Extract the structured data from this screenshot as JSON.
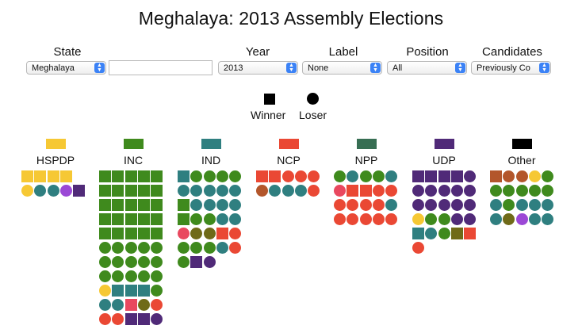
{
  "title": "Meghalaya: 2013 Assembly Elections",
  "controls": {
    "state": {
      "label": "State",
      "value": "Meghalaya"
    },
    "search": {
      "value": ""
    },
    "year": {
      "label": "Year",
      "value": "2013"
    },
    "labelsel": {
      "label": "Label",
      "value": "None"
    },
    "position": {
      "label": "Position",
      "value": "All"
    },
    "candidates": {
      "label": "Candidates",
      "value": "Previously Co"
    }
  },
  "legend": {
    "winner": "Winner",
    "loser": "Loser"
  },
  "colors": {
    "G": "#3f8a1d",
    "T": "#2f7f80",
    "Y": "#f6c834",
    "P": "#502a78",
    "R": "#ea4834",
    "B": "#b3562b",
    "O": "#6f6a18",
    "K": "#e9485f",
    "V": "#9b48d6",
    "D": "#376e53",
    "X": "#000000"
  },
  "parties": [
    {
      "name": "HSPDP",
      "color": "#f6c834",
      "rows": [
        "YwYwYwYw",
        "YlTlTlVlPw"
      ]
    },
    {
      "name": "INC",
      "color": "#3f8a1d",
      "rows": [
        "GwGwGwGwGw",
        "GwGwGwGwGw",
        "GwGwGwGwGw",
        "GwGwGwGwGw",
        "GwGwGwGwGw",
        "GlGlGlGlGl",
        "GlGlGlGlGl",
        "GlGlGlGlGl",
        "YlTwTwTwGl",
        "TlTlKwOlRl",
        "RlRlPwPwPl"
      ]
    },
    {
      "name": "IND",
      "color": "#2f7f80",
      "rows": [
        "TwGlGlGlGl",
        "TlTlTlTlTl",
        "GwTlTlTlTl",
        "GwGlGlTlTl",
        "KlOlOlRwRl",
        "GlGlGlTlRl",
        "GlPwPl"
      ]
    },
    {
      "name": "NCP",
      "color": "#ea4834",
      "rows": [
        "RwRwRlRlRl",
        "BlTlTlTlRl"
      ]
    },
    {
      "name": "NPP",
      "color": "#376e53",
      "rows": [
        "GlTlGlGlTl",
        "KlRwRwRlRl",
        "RlRlRlRlTl",
        "RlRlRlRlRl"
      ]
    },
    {
      "name": "UDP",
      "color": "#502a78",
      "rows": [
        "PwPwPwPwPl",
        "PlPlPlPlPl",
        "PlPlPlPlPl",
        "YlGlGlPlPl",
        "TwTlGlOwRw",
        "Rl"
      ]
    },
    {
      "name": "Other",
      "color": "#000000",
      "rows": [
        "BwBlBlYlGl",
        "GlGlGlGlGl",
        "TlGlTlTlTl",
        "TlOlVlTlTl"
      ]
    }
  ]
}
